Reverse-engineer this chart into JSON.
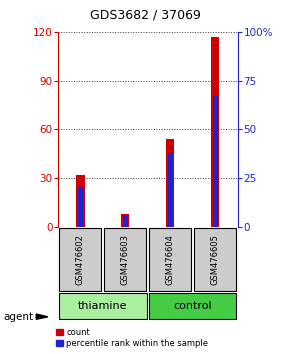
{
  "title": "GDS3682 / 37069",
  "samples": [
    "GSM476602",
    "GSM476603",
    "GSM476604",
    "GSM476605"
  ],
  "count_values": [
    32,
    8,
    54,
    117
  ],
  "percentile_values": [
    20,
    6,
    38,
    67
  ],
  "left_ylim": [
    0,
    120
  ],
  "left_yticks": [
    0,
    30,
    60,
    90,
    120
  ],
  "right_ylim": [
    0,
    100
  ],
  "right_yticks": [
    0,
    25,
    50,
    75,
    100
  ],
  "right_yticklabels": [
    "0",
    "25",
    "50",
    "75",
    "100%"
  ],
  "count_color": "#cc0000",
  "percentile_color": "#2222cc",
  "red_bar_width": 0.18,
  "blue_bar_width": 0.1,
  "groups": [
    {
      "label": "thiamine",
      "samples": [
        0,
        1
      ],
      "color": "#aaeea0"
    },
    {
      "label": "control",
      "samples": [
        2,
        3
      ],
      "color": "#44cc44"
    }
  ],
  "agent_label": "agent",
  "legend_count_label": "count",
  "legend_percentile_label": "percentile rank within the sample",
  "title_color": "#000000",
  "left_tick_color": "#cc0000",
  "right_tick_color": "#2222cc",
  "background_color": "#ffffff",
  "grid_color": "#333333",
  "sample_box_color": "#cccccc"
}
